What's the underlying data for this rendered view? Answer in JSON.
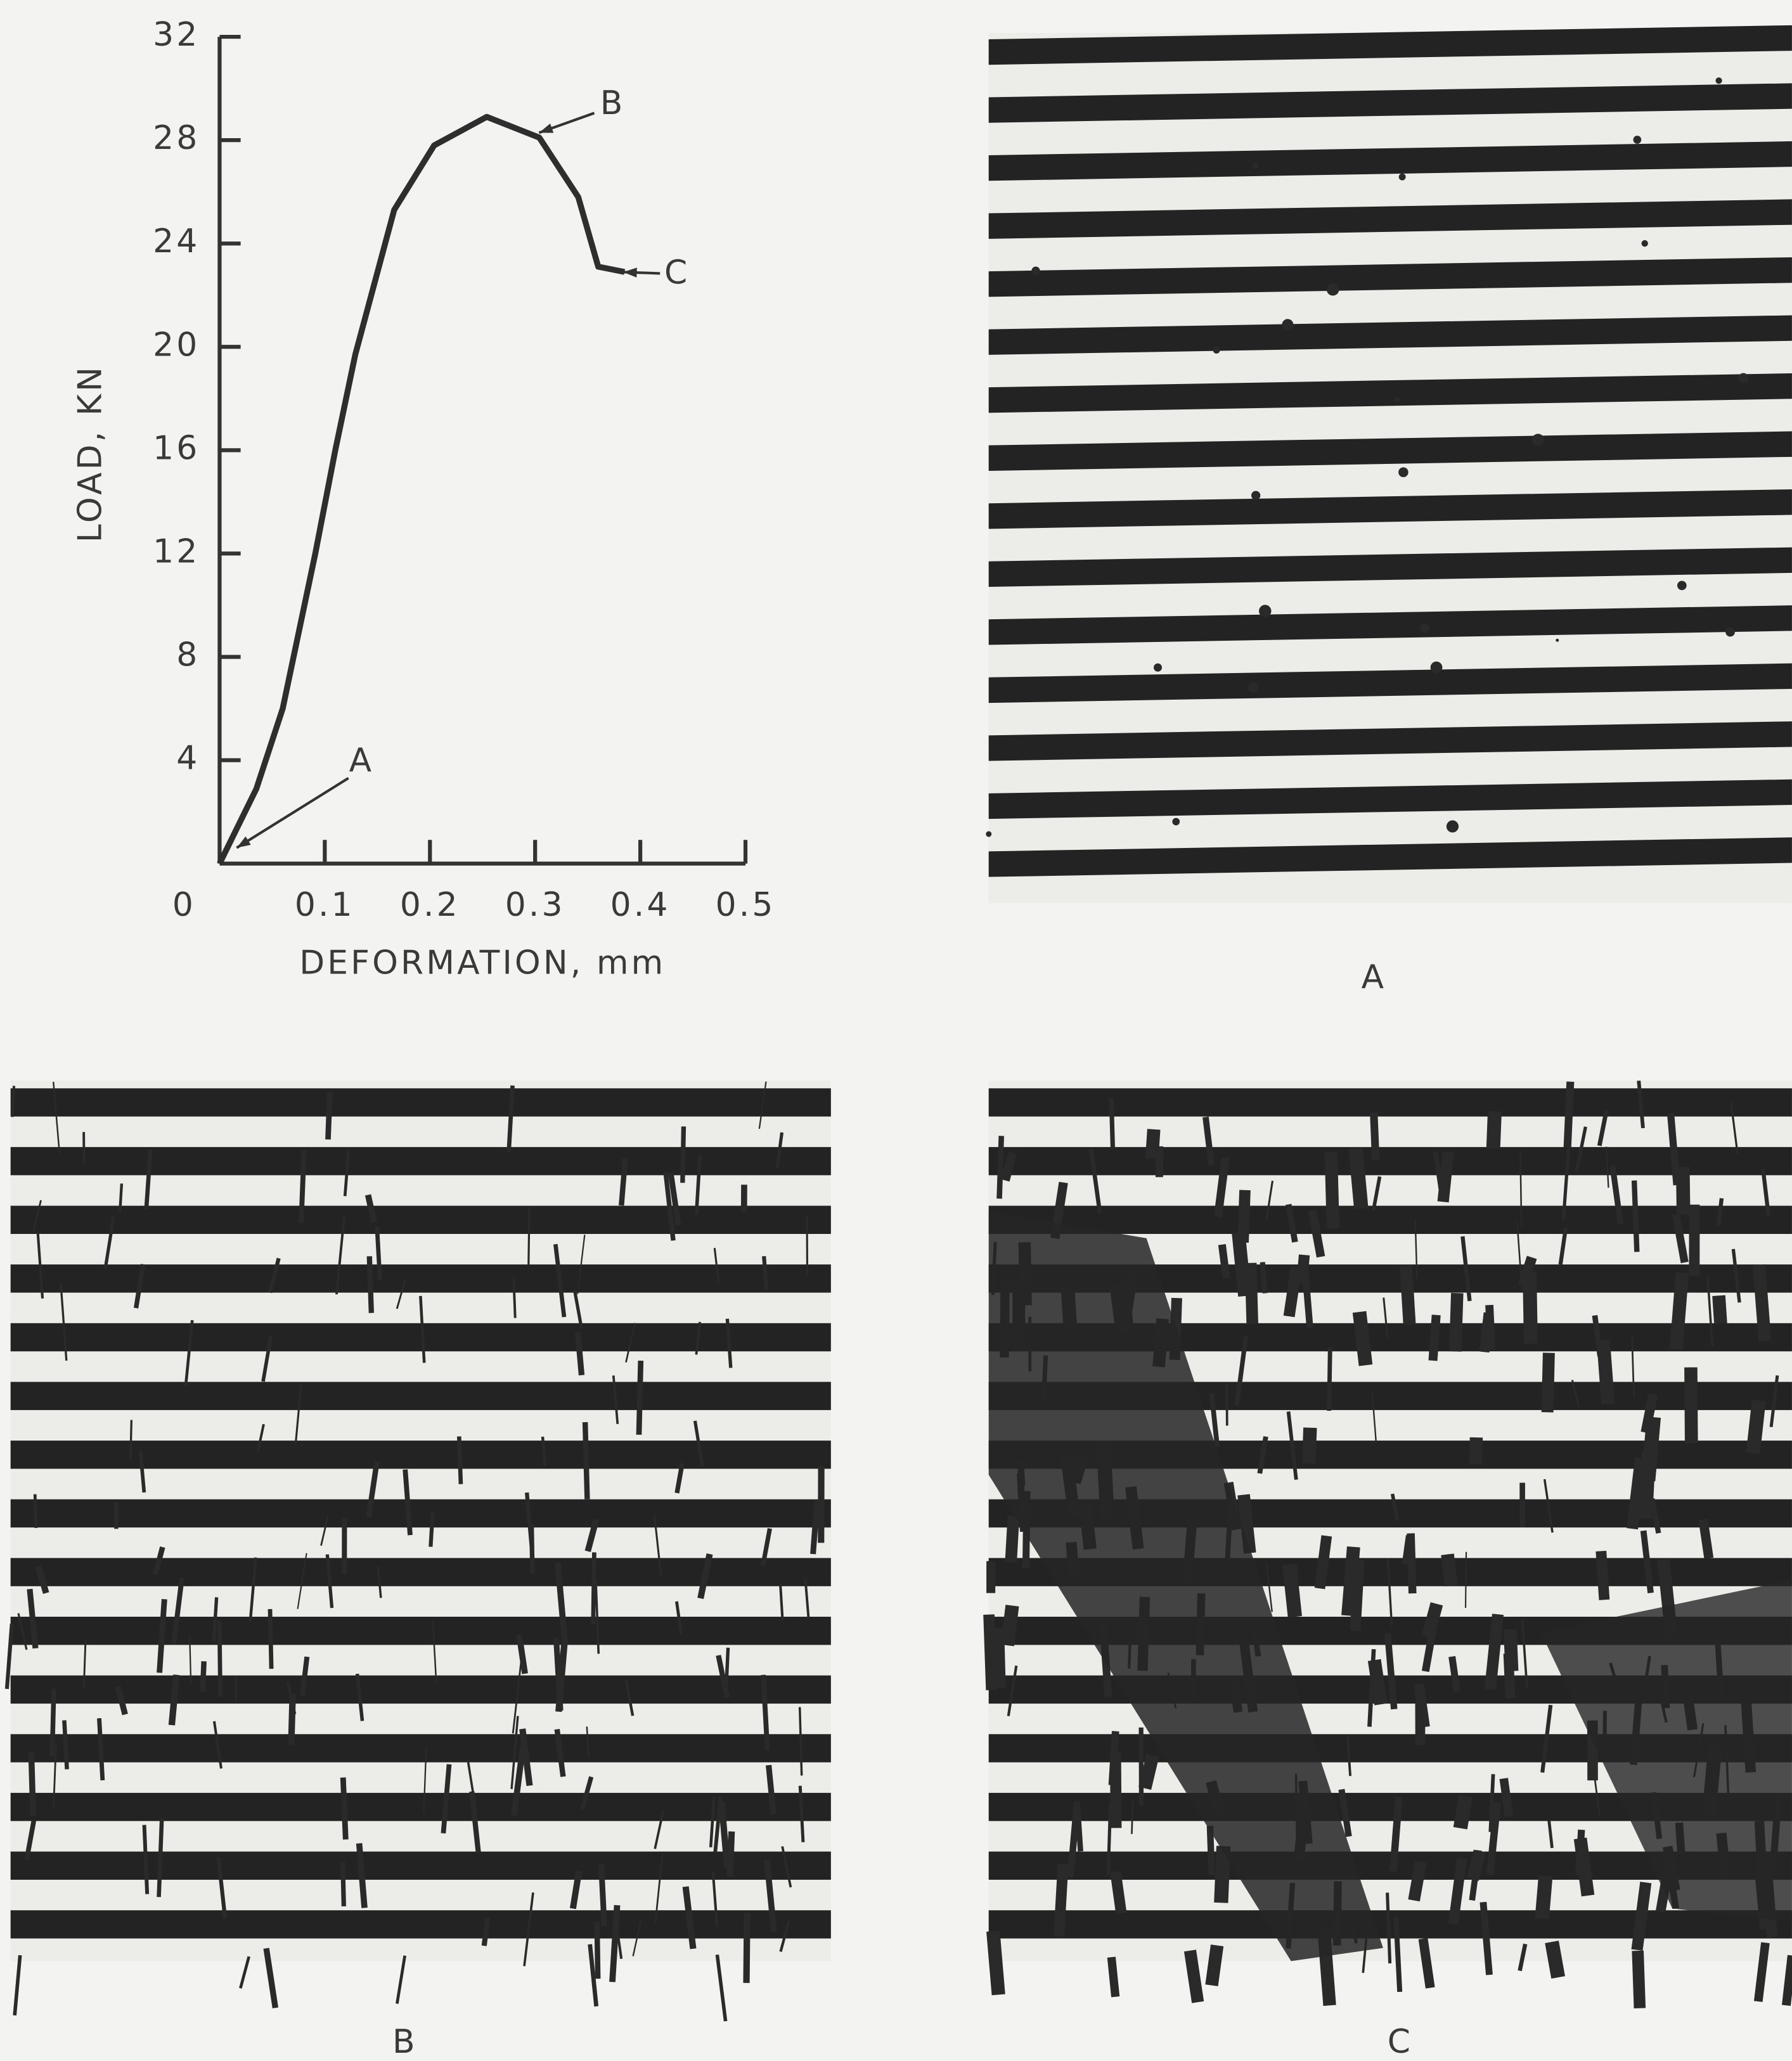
{
  "chart_data": {
    "type": "line",
    "ylabel": "LOAD, KN",
    "xlabel": "DEFORMATION, mm",
    "x": [
      0,
      0.035,
      0.06,
      0.091,
      0.11,
      0.129,
      0.166,
      0.204,
      0.254,
      0.304,
      0.341,
      0.36,
      0.385
    ],
    "values": [
      0,
      2.9,
      6,
      12,
      16,
      19.7,
      25.3,
      27.8,
      28.9,
      28.1,
      25.8,
      23.1,
      22.9
    ],
    "color": "#2e2e2e",
    "xlim": [
      0,
      0.5
    ],
    "ylim": [
      0,
      32
    ],
    "xticks": [
      0,
      0.1,
      0.2,
      0.3,
      0.4,
      0.5
    ],
    "yticks": [
      4,
      8,
      12,
      16,
      20,
      24,
      28,
      32
    ],
    "annotations": [
      "A",
      "B",
      "C"
    ]
  },
  "panels": [
    {
      "label": "A"
    },
    {
      "label": "B"
    },
    {
      "label": "C"
    }
  ]
}
